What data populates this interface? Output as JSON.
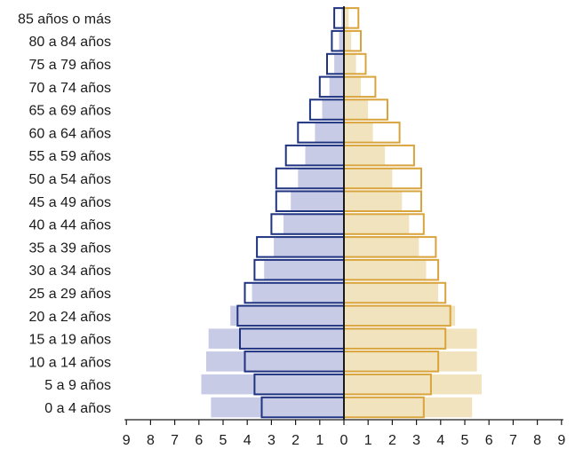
{
  "chart_data": {
    "type": "bar",
    "orientation": "horizontal",
    "layout": "population-pyramid",
    "categories": [
      "0 a 4 años",
      "5 a 9 años",
      "10 a 14 años",
      "15 a 19 años",
      "20 a 24 años",
      "25 a 29 años",
      "30 a 34 años",
      "35 a 39 años",
      "40 a 44 años",
      "45 a 49 años",
      "50 a 54 años",
      "55 a 59 años",
      "60 a 64 años",
      "65 a 69 años",
      "70 a 74 años",
      "75 a 79 años",
      "80 a 84 años",
      "85 años o más"
    ],
    "series": [
      {
        "side": "left",
        "style": "filled",
        "color": "#c7cbe6",
        "values": [
          5.5,
          5.9,
          5.7,
          5.6,
          4.7,
          3.8,
          3.3,
          2.9,
          2.5,
          2.2,
          1.9,
          1.6,
          1.2,
          0.9,
          0.6,
          0.4,
          0.2,
          0.1
        ]
      },
      {
        "side": "right",
        "style": "filled",
        "color": "#f0e3bd",
        "values": [
          5.3,
          5.7,
          5.5,
          5.5,
          4.6,
          3.9,
          3.4,
          3.1,
          2.7,
          2.4,
          2.0,
          1.7,
          1.2,
          1.0,
          0.7,
          0.5,
          0.3,
          0.2
        ]
      },
      {
        "side": "left",
        "style": "outline",
        "color": "#1f3380",
        "values": [
          3.4,
          3.7,
          4.1,
          4.3,
          4.4,
          4.1,
          3.7,
          3.6,
          3.0,
          2.8,
          2.8,
          2.4,
          1.9,
          1.4,
          1.0,
          0.7,
          0.5,
          0.4
        ]
      },
      {
        "side": "right",
        "style": "outline",
        "color": "#d9a43c",
        "values": [
          3.3,
          3.6,
          3.9,
          4.2,
          4.4,
          4.2,
          3.9,
          3.8,
          3.3,
          3.2,
          3.2,
          2.9,
          2.3,
          1.8,
          1.3,
          0.9,
          0.7,
          0.6
        ]
      }
    ],
    "xlim": [
      -9,
      9
    ],
    "x_tick_labels": [
      "9",
      "8",
      "7",
      "6",
      "5",
      "4",
      "3",
      "2",
      "1",
      "0",
      "1",
      "2",
      "3",
      "4",
      "5",
      "6",
      "7",
      "8",
      "9"
    ],
    "grid": false,
    "legend": "none"
  }
}
